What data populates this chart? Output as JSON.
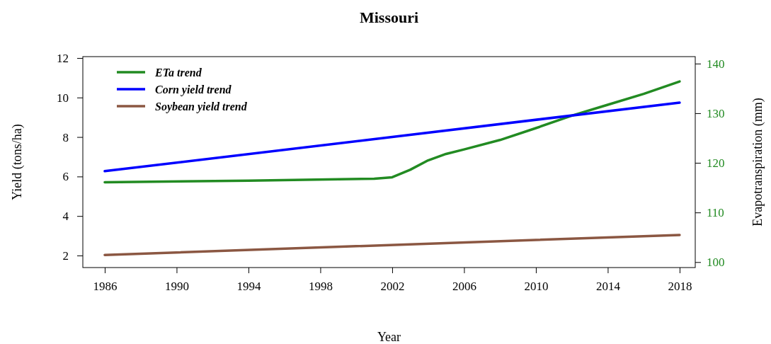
{
  "chart_data": {
    "type": "line",
    "title": "Missouri",
    "xlabel": "Year",
    "ylabel": "Yield (tons/ha)",
    "y2label": "Evapotranspiration (mm)",
    "xlim": [
      1984.78,
      2018.87
    ],
    "xticks": [
      1986,
      1990,
      1994,
      1998,
      2002,
      2006,
      2010,
      2014,
      2018
    ],
    "ylim": [
      1.39,
      12.07
    ],
    "yticks": [
      2,
      4,
      6,
      8,
      10,
      12
    ],
    "y2lim": [
      98.9,
      141.4
    ],
    "y2ticks": [
      100,
      110,
      120,
      130,
      140
    ],
    "legend": "top left",
    "grid": false,
    "line_style": "solid",
    "marker": "none",
    "series": [
      {
        "name": "ETa trend",
        "color": "#228b22",
        "axis": "y2",
        "x": [
          1986,
          1994,
          2001,
          2002,
          2003,
          2004,
          2005,
          2006,
          2008,
          2010,
          2012,
          2014,
          2016,
          2018
        ],
        "values": [
          116.1,
          116.4,
          116.8,
          117.1,
          118.6,
          120.5,
          121.8,
          122.7,
          124.6,
          127.0,
          129.5,
          131.7,
          133.9,
          136.4
        ]
      },
      {
        "name": "Corn yield trend",
        "color": "#0000ff",
        "x": [
          1986,
          2018
        ],
        "values": [
          6.27,
          9.74
        ]
      },
      {
        "name": "Soybean yield trend",
        "color": "#8b5742",
        "x": [
          1986,
          2018
        ],
        "values": [
          2.03,
          3.04
        ]
      }
    ]
  }
}
